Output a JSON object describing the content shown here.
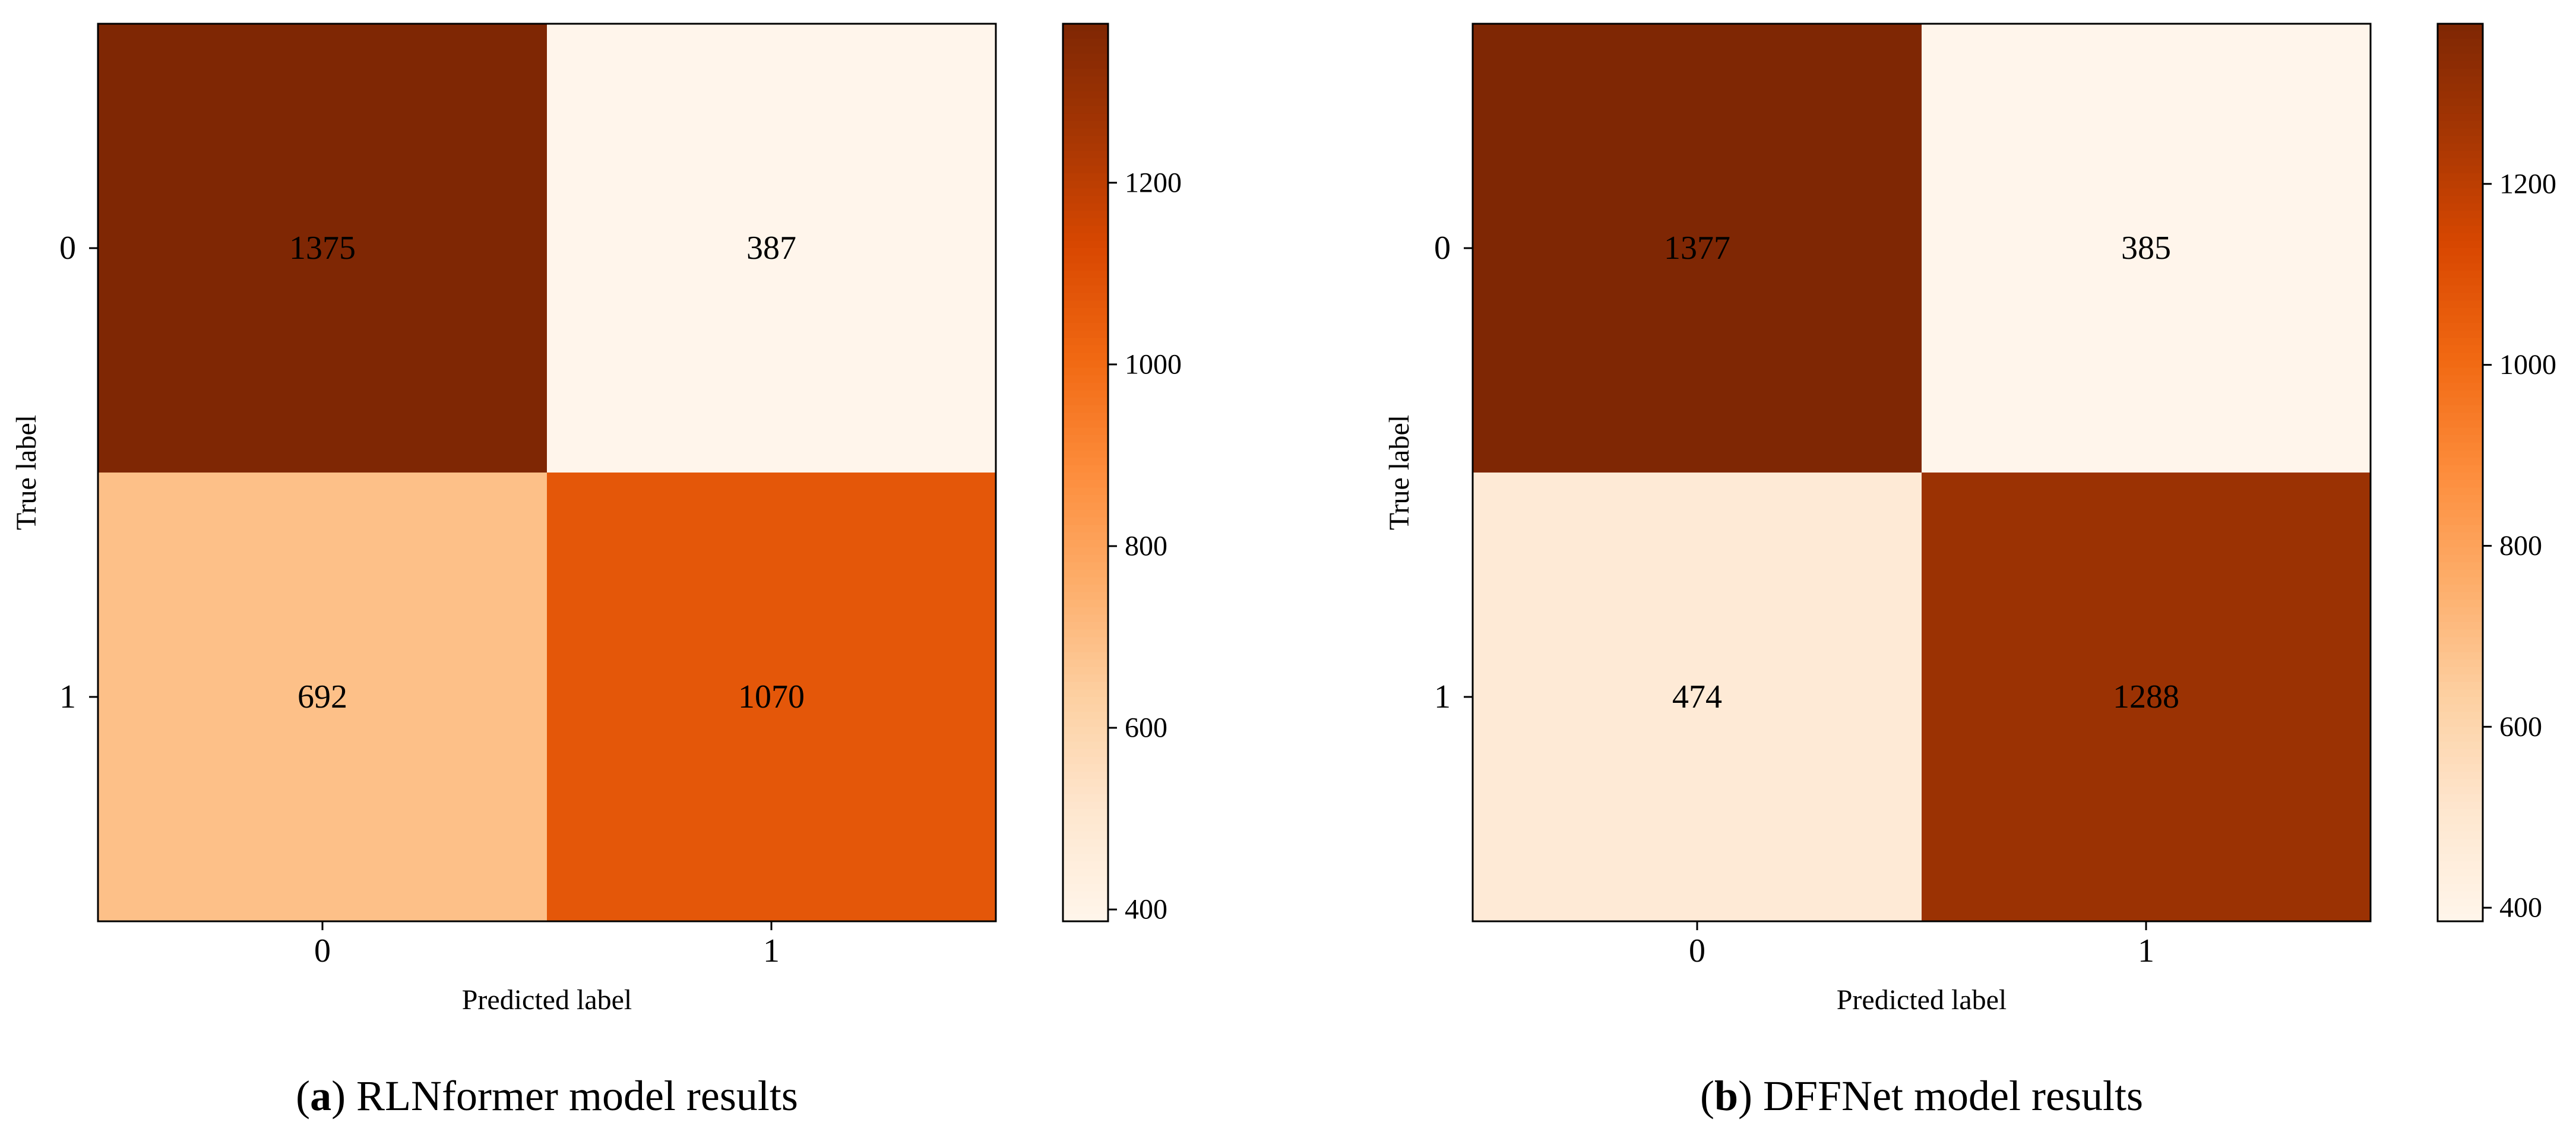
{
  "colors": {
    "scale": [
      "#fff5eb",
      "#fee6ce",
      "#fdd0a2",
      "#fdae6b",
      "#fd8d3c",
      "#f16913",
      "#d94801",
      "#a63603",
      "#7f2704"
    ],
    "axis": "#000000",
    "background": "#ffffff"
  },
  "chart_data": [
    {
      "type": "heatmap",
      "caption_letter": "a",
      "caption_text": ") RLNformer model results",
      "caption_open": "(",
      "xlabel": "Predicted label",
      "ylabel": "True label",
      "x_ticks": [
        "0",
        "1"
      ],
      "y_ticks": [
        "0",
        "1"
      ],
      "matrix": [
        [
          1375,
          387
        ],
        [
          692,
          1070
        ]
      ],
      "colorbar": {
        "range": [
          387,
          1375
        ],
        "ticks": [
          400,
          600,
          800,
          1000,
          1200
        ]
      }
    },
    {
      "type": "heatmap",
      "caption_letter": "b",
      "caption_text": ") DFFNet model results",
      "caption_open": "(",
      "xlabel": "Predicted label",
      "ylabel": "True label",
      "x_ticks": [
        "0",
        "1"
      ],
      "y_ticks": [
        "0",
        "1"
      ],
      "matrix": [
        [
          1377,
          385
        ],
        [
          474,
          1288
        ]
      ],
      "colorbar": {
        "range": [
          385,
          1377
        ],
        "ticks": [
          400,
          600,
          800,
          1000,
          1200
        ]
      }
    }
  ]
}
